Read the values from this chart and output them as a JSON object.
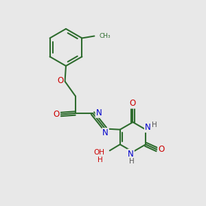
{
  "background_color": "#e8e8e8",
  "bond_color": "#2d6b2d",
  "atom_colors": {
    "O": "#cc0000",
    "N": "#0000cc",
    "H": "#555555",
    "C": "#2d6b2d"
  },
  "figsize": [
    3.0,
    3.0
  ],
  "dpi": 100,
  "xlim": [
    0,
    10
  ],
  "ylim": [
    0,
    10
  ]
}
